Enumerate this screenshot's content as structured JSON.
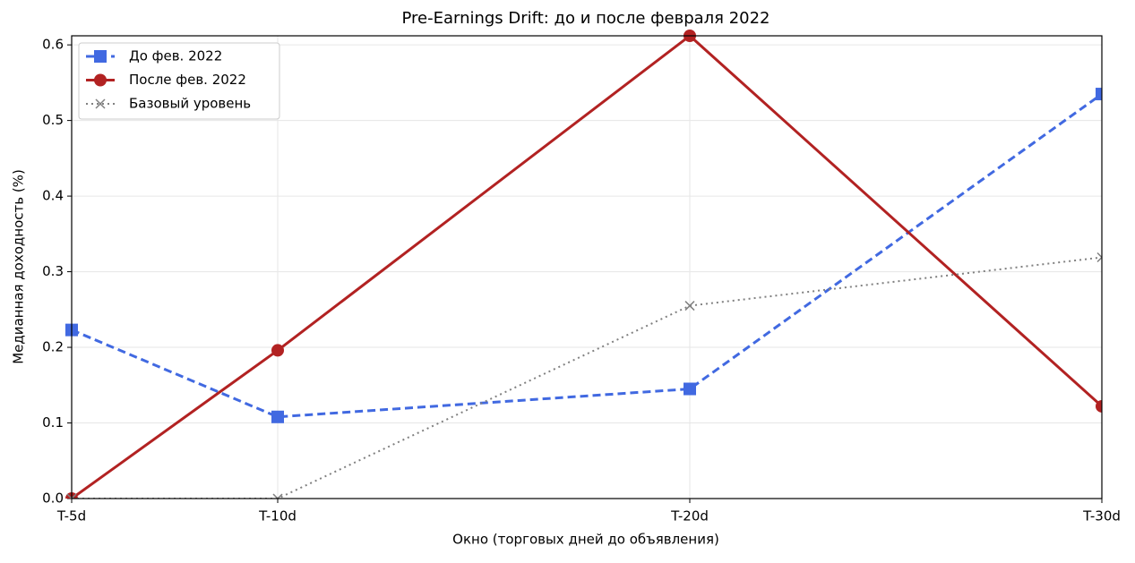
{
  "chart_data": {
    "type": "line",
    "title": "Pre-Earnings Drift: до и после февраля 2022",
    "xlabel": "Окно (торговых дней до объявления)",
    "ylabel": "Медианная доходность (%)",
    "x": [
      5,
      10,
      20,
      30
    ],
    "xlim": [
      5,
      30
    ],
    "xticks": [
      {
        "value": 5,
        "label": "T-5d"
      },
      {
        "value": 10,
        "label": "T-10d"
      },
      {
        "value": 20,
        "label": "T-20d"
      },
      {
        "value": 30,
        "label": "T-30d"
      }
    ],
    "ylim": [
      0,
      0.612
    ],
    "yticks": [
      {
        "value": 0,
        "label": "0.0"
      },
      0.1,
      0.2,
      0.3,
      0.4,
      0.5,
      0.6
    ],
    "grid": true,
    "legend": "upper left",
    "series": [
      {
        "name": "До фев. 2022",
        "color": "#4169e1",
        "linestyle": "dashed",
        "marker": "square",
        "values": [
          0.223,
          0.108,
          0.145,
          0.535
        ]
      },
      {
        "name": "После фев. 2022",
        "color": "#b22222",
        "linestyle": "solid",
        "marker": "circle",
        "values": [
          0.0,
          0.196,
          0.612,
          0.122
        ]
      },
      {
        "name": "Базовый уровень",
        "color": "#808080",
        "linestyle": "dotted",
        "marker": "x",
        "values": [
          0.0,
          0.0,
          0.255,
          0.319
        ]
      }
    ]
  }
}
